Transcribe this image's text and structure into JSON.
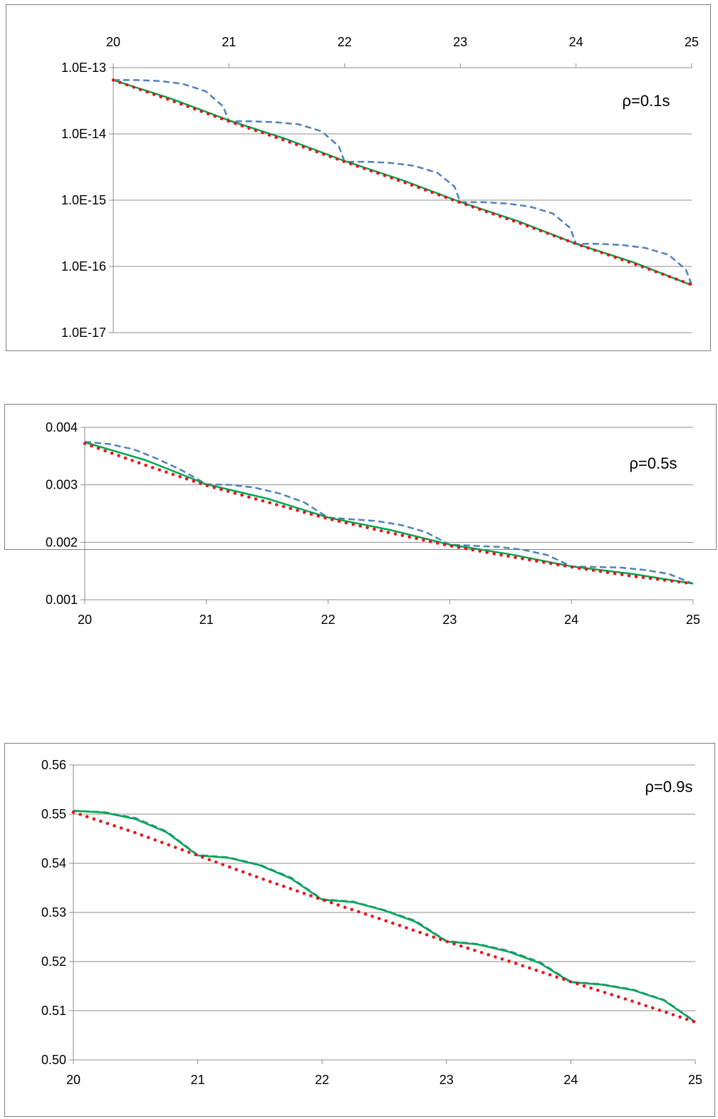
{
  "chart_data": [
    {
      "type": "line",
      "title": "",
      "xlabel": "",
      "ylabel": "",
      "annotation": "ρ=0.1s",
      "y_scale": "log",
      "ylim": [
        1e-17,
        1e-13
      ],
      "xlim": [
        20,
        25
      ],
      "grid": true,
      "x_axis_position": "top",
      "x_ticks": [
        "20",
        "21",
        "22",
        "23",
        "24",
        "25"
      ],
      "y_ticks": [
        "1.0E-13",
        "1.0E-14",
        "1.0E-15",
        "1.0E-16",
        "1.0E-17"
      ],
      "colors": {
        "dashed": "#4f81bd",
        "solid": "#00a651",
        "dotted": "#e8141b"
      },
      "series": [
        {
          "style": "dashed",
          "x": [
            20,
            20.2,
            20.4,
            20.6,
            20.8,
            20.95,
            21,
            21.2,
            21.4,
            21.6,
            21.8,
            21.95,
            22,
            22.2,
            22.4,
            22.6,
            22.8,
            22.95,
            23,
            23.2,
            23.4,
            23.6,
            23.8,
            23.95,
            24,
            24.2,
            24.4,
            24.6,
            24.8,
            24.95,
            25
          ],
          "y": [
            6.5e-14,
            6.5e-14,
            6.3e-14,
            5.7e-14,
            4.4e-14,
            2.6e-14,
            1.55e-14,
            1.55e-14,
            1.5e-14,
            1.4e-14,
            1.1e-14,
            6.5e-15,
            3.8e-15,
            3.8e-15,
            3.65e-15,
            3.3e-15,
            2.6e-15,
            1.6e-15,
            9.3e-16,
            9.3e-16,
            8.9e-16,
            8e-16,
            6.3e-16,
            3.8e-16,
            2.2e-16,
            2.2e-16,
            2.1e-16,
            1.9e-16,
            1.5e-16,
            9e-17,
            5.3e-17
          ]
        },
        {
          "style": "solid",
          "x": [
            20,
            20.5,
            21,
            21.5,
            22,
            22.5,
            23,
            23.5,
            24,
            24.5,
            25
          ],
          "y": [
            6.5e-14,
            3.4e-14,
            1.6e-14,
            8.3e-15,
            3.9e-15,
            2e-15,
            9.4e-16,
            4.8e-16,
            2.2e-16,
            1.15e-16,
            5.2e-17
          ]
        },
        {
          "style": "dotted",
          "x": [
            20,
            20.5,
            21,
            21.5,
            22,
            22.5,
            23,
            23.5,
            24,
            24.5,
            25
          ],
          "y": [
            6.5e-14,
            3.2e-14,
            1.55e-14,
            7.8e-15,
            3.8e-15,
            1.9e-15,
            9.2e-16,
            4.6e-16,
            2.2e-16,
            1.1e-16,
            5.3e-17
          ]
        }
      ]
    },
    {
      "type": "line",
      "title": "",
      "xlabel": "",
      "ylabel": "",
      "annotation": "ρ=0.5s",
      "y_scale": "linear",
      "ylim": [
        0.001,
        0.004
      ],
      "xlim": [
        20,
        25
      ],
      "grid": true,
      "x_axis_position": "bottom",
      "x_ticks": [
        "20",
        "21",
        "22",
        "23",
        "24",
        "25"
      ],
      "y_ticks": [
        "0.004",
        "0.003",
        "0.002",
        "0.001"
      ],
      "colors": {
        "dashed": "#4f81bd",
        "solid": "#00a651",
        "dotted": "#e8141b"
      },
      "series": [
        {
          "style": "dashed",
          "x": [
            20,
            20.2,
            20.4,
            20.6,
            20.8,
            21,
            21.2,
            21.4,
            21.6,
            21.8,
            22,
            22.2,
            22.4,
            22.6,
            22.8,
            23,
            23.2,
            23.4,
            23.6,
            23.8,
            24,
            24.2,
            24.4,
            24.6,
            24.8,
            25
          ],
          "y": [
            0.00375,
            0.00371,
            0.00362,
            0.00345,
            0.00325,
            0.00301,
            0.003,
            0.00295,
            0.00285,
            0.0027,
            0.00243,
            0.0024,
            0.00237,
            0.0023,
            0.00218,
            0.00196,
            0.00194,
            0.00192,
            0.00187,
            0.00178,
            0.00158,
            0.00157,
            0.00156,
            0.00152,
            0.00145,
            0.00128
          ]
        },
        {
          "style": "solid",
          "x": [
            20,
            20.5,
            21,
            21.5,
            22,
            22.5,
            23,
            23.5,
            24,
            24.5,
            25
          ],
          "y": [
            0.00374,
            0.00343,
            0.00301,
            0.00276,
            0.00243,
            0.00222,
            0.00196,
            0.00179,
            0.00158,
            0.00145,
            0.00128
          ]
        },
        {
          "style": "dotted",
          "x": [
            20,
            20.5,
            21,
            21.5,
            22,
            22.5,
            23,
            23.5,
            24,
            24.5,
            25
          ],
          "y": [
            0.00372,
            0.00334,
            0.00299,
            0.0027,
            0.00241,
            0.00217,
            0.00194,
            0.00175,
            0.00157,
            0.00141,
            0.00128
          ]
        }
      ]
    },
    {
      "type": "line",
      "title": "",
      "xlabel": "",
      "ylabel": "",
      "annotation": "ρ=0.9s",
      "y_scale": "linear",
      "ylim": [
        0.5,
        0.56
      ],
      "xlim": [
        20,
        25
      ],
      "grid": true,
      "x_axis_position": "bottom",
      "x_ticks": [
        "20",
        "21",
        "22",
        "23",
        "24",
        "25"
      ],
      "y_ticks": [
        "0.56",
        "0.55",
        "0.54",
        "0.53",
        "0.52",
        "0.51",
        "0.50"
      ],
      "colors": {
        "dashed": "#4f81bd",
        "solid": "#00a651",
        "dotted": "#e8141b"
      },
      "series": [
        {
          "style": "dashed",
          "x": [
            20,
            20.25,
            20.5,
            20.75,
            21,
            21.25,
            21.5,
            21.75,
            22,
            22.25,
            22.5,
            22.75,
            23,
            23.25,
            23.5,
            23.75,
            24,
            24.25,
            24.5,
            24.75,
            25
          ],
          "y": [
            0.5507,
            0.5504,
            0.5492,
            0.5465,
            0.5417,
            0.5412,
            0.5397,
            0.5371,
            0.5327,
            0.5322,
            0.5305,
            0.5283,
            0.5242,
            0.5236,
            0.5222,
            0.5199,
            0.5159,
            0.5154,
            0.5143,
            0.5122,
            0.5078
          ]
        },
        {
          "style": "solid",
          "x": [
            20,
            20.25,
            20.5,
            20.75,
            21,
            21.25,
            21.5,
            21.75,
            22,
            22.25,
            22.5,
            22.75,
            23,
            23.25,
            23.5,
            23.75,
            24,
            24.25,
            24.5,
            24.75,
            25
          ],
          "y": [
            0.5507,
            0.5503,
            0.549,
            0.5463,
            0.5416,
            0.5411,
            0.5396,
            0.5369,
            0.5326,
            0.5321,
            0.5304,
            0.5281,
            0.5241,
            0.5235,
            0.522,
            0.5197,
            0.5158,
            0.5153,
            0.5142,
            0.5121,
            0.5077
          ]
        },
        {
          "style": "dotted",
          "x": [
            20,
            20.5,
            21,
            21.5,
            22,
            22.5,
            23,
            23.5,
            24,
            24.5,
            25
          ],
          "y": [
            0.5504,
            0.5462,
            0.5416,
            0.537,
            0.5326,
            0.5284,
            0.5241,
            0.5201,
            0.5159,
            0.5119,
            0.5077
          ]
        }
      ]
    }
  ]
}
